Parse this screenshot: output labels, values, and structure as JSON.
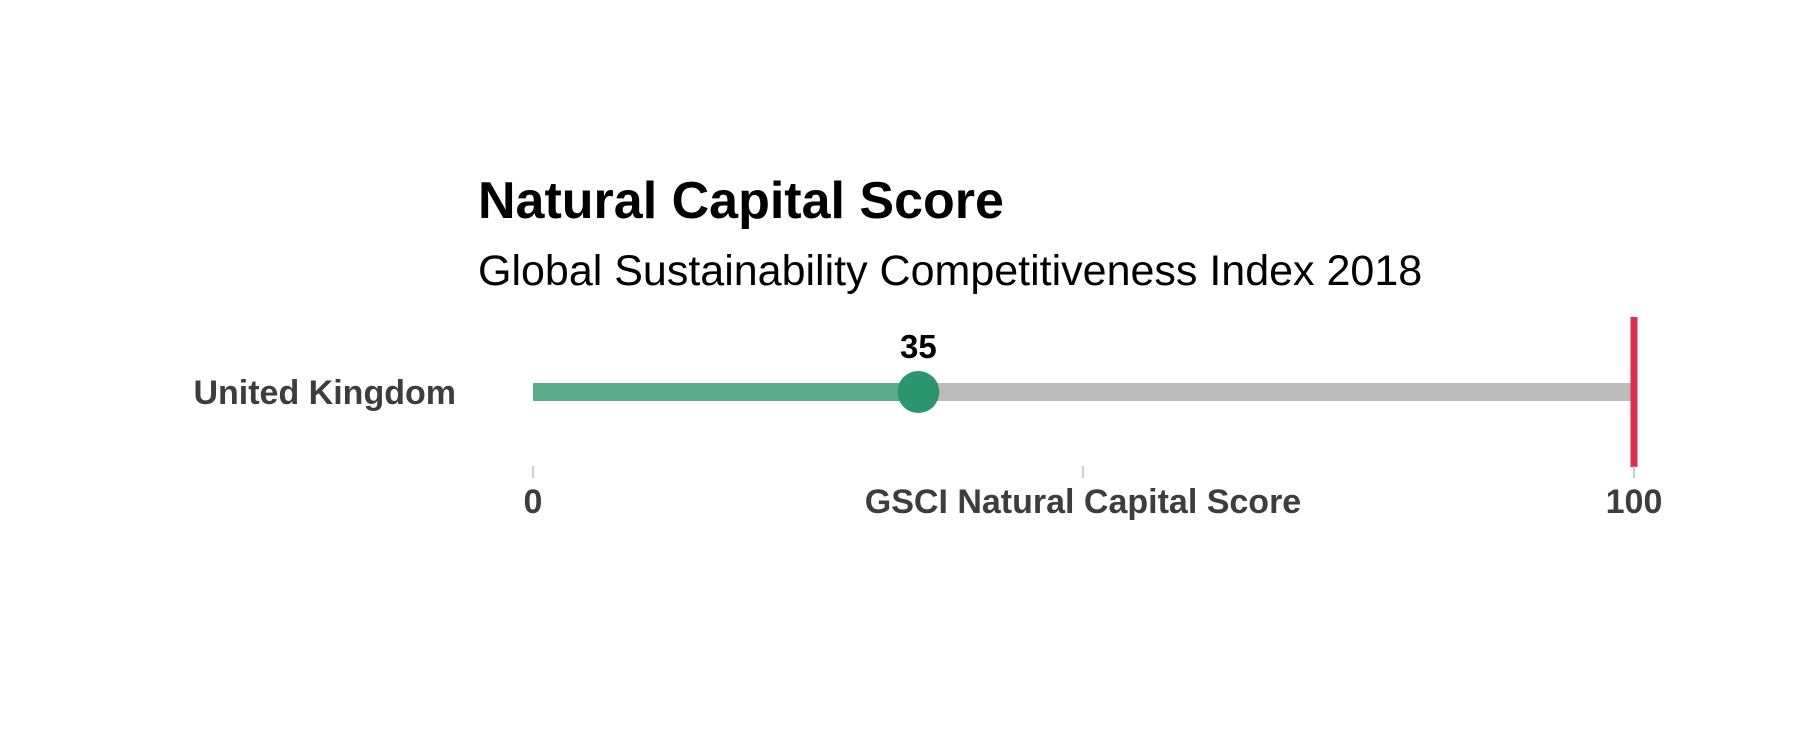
{
  "chart_data": {
    "type": "bar",
    "title": "Natural Capital Score",
    "subtitle": "Global Sustainability Competitiveness Index 2018",
    "categories": [
      "United Kingdom"
    ],
    "values": [
      35
    ],
    "value_labels": [
      "35"
    ],
    "xlabel": "GSCI Natural Capital Score",
    "ylabel": "",
    "xlim": [
      0,
      100
    ],
    "x_tick_labels": [
      "0",
      "100"
    ],
    "reference_line": 100,
    "grid": false,
    "legend": "none",
    "colors": {
      "fill": "#5aab8a",
      "track": "#bcbcbc",
      "marker": "#2d9470",
      "reference": "#d9304f",
      "tick": "#bcbcbc"
    }
  }
}
